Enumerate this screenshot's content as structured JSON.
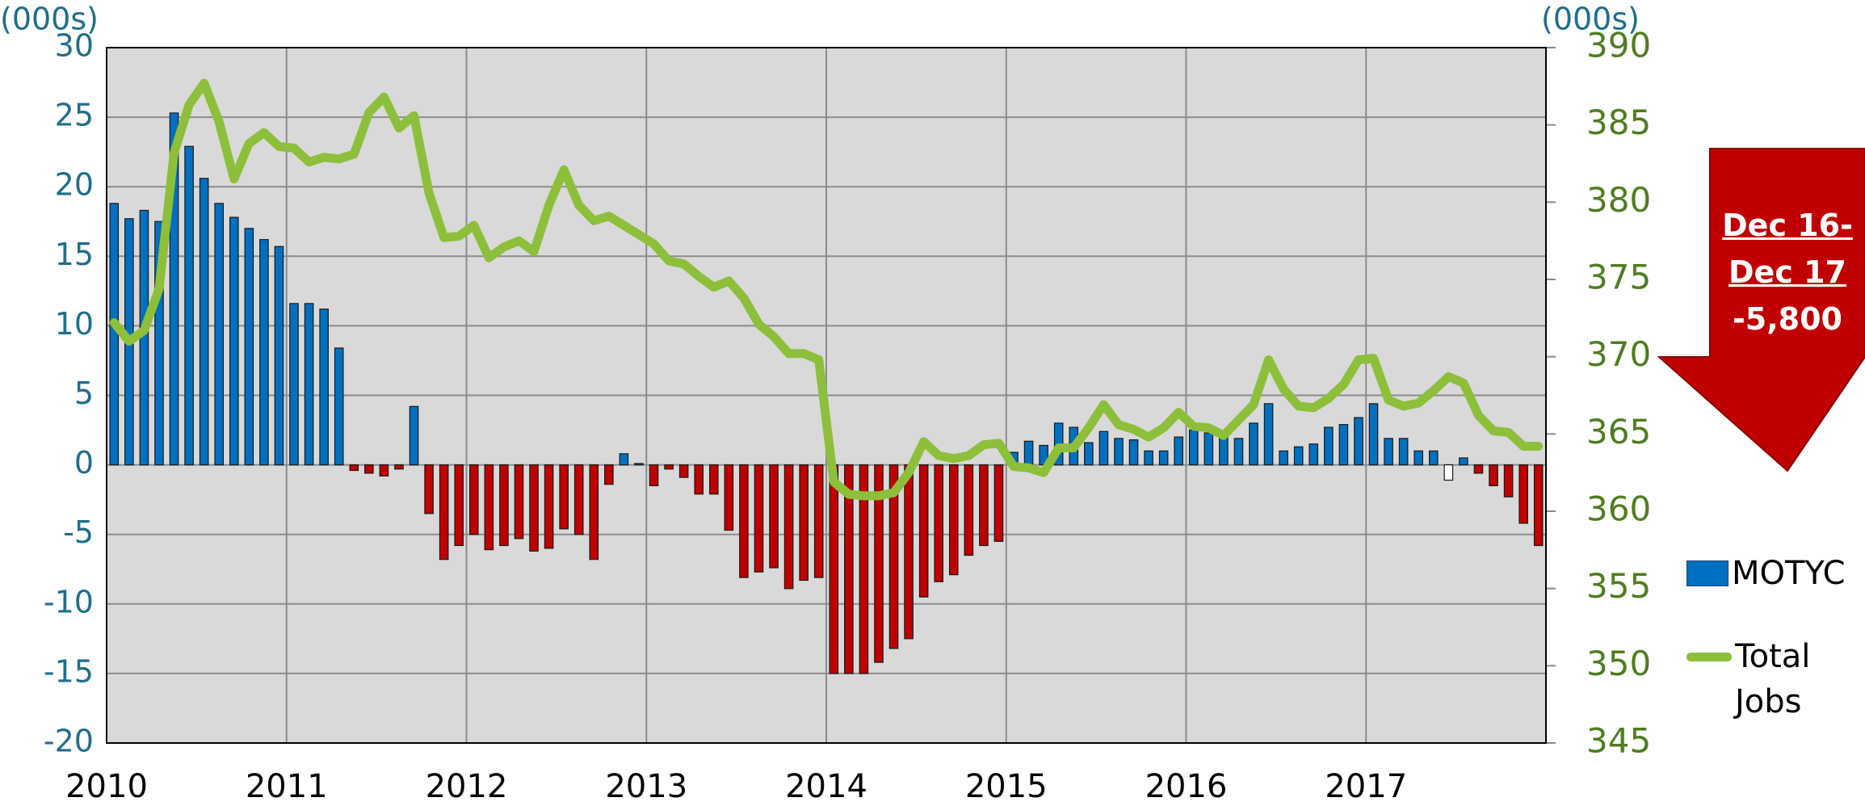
{
  "chart_data": {
    "type": "bar_line",
    "y_unit_label": "(000s)",
    "y2_unit_label": "(000s)",
    "categories": [
      "2010",
      null,
      null,
      null,
      null,
      null,
      null,
      null,
      null,
      null,
      null,
      null,
      "2011",
      null,
      null,
      null,
      null,
      null,
      null,
      null,
      null,
      null,
      null,
      null,
      "2012",
      null,
      null,
      null,
      null,
      null,
      null,
      null,
      null,
      null,
      null,
      null,
      "2013",
      null,
      null,
      null,
      null,
      null,
      null,
      null,
      null,
      null,
      null,
      null,
      "2014",
      null,
      null,
      null,
      null,
      null,
      null,
      null,
      null,
      null,
      null,
      null,
      "2015",
      null,
      null,
      null,
      null,
      null,
      null,
      null,
      null,
      null,
      null,
      null,
      "2016",
      null,
      null,
      null,
      null,
      null,
      null,
      null,
      null,
      null,
      null,
      null,
      "2017",
      null,
      null,
      null,
      null,
      null,
      null,
      null,
      null,
      null,
      null,
      null
    ],
    "series": [
      {
        "name": "MOTYC",
        "type": "bar",
        "axis": "y",
        "color": "#0070c0",
        "values": [
          18.8,
          17.7,
          18.3,
          17.5,
          25.3,
          22.9,
          20.6,
          18.8,
          17.8,
          17.0,
          16.2,
          15.7,
          11.6,
          11.6,
          11.2,
          8.4,
          -0.4,
          -0.6,
          -0.8,
          -0.3,
          4.2,
          -3.5,
          -6.8,
          -5.8,
          -5.0,
          -6.1,
          -5.8,
          -5.3,
          -6.2,
          -6.0,
          -4.6,
          -5.0,
          -6.8,
          -1.4,
          0.8,
          0.1,
          -1.5,
          -0.3,
          -0.9,
          -2.1,
          -2.1,
          -4.7,
          -8.1,
          -7.7,
          -7.4,
          -8.9,
          -8.3,
          -8.1,
          -15.0,
          -15.0,
          -15.0,
          -14.2,
          -13.2,
          -12.5,
          -9.5,
          -8.4,
          -7.9,
          -6.5,
          -5.8,
          -5.5,
          0.9,
          1.7,
          1.4,
          3.0,
          2.7,
          1.6,
          2.4,
          1.9,
          1.8,
          1.0,
          1.0,
          2.0,
          2.5,
          2.3,
          2.0,
          1.9,
          3.0,
          4.4,
          1.0,
          1.3,
          1.5,
          2.7,
          2.9,
          3.4,
          4.4,
          1.9,
          1.9,
          1.0,
          1.0,
          -1.1,
          0.5,
          -0.6,
          -1.5,
          -2.3,
          -4.2,
          -5.8
        ],
        "colors": [
          "#0070c0",
          "#0070c0",
          "#0070c0",
          "#0070c0",
          "#0070c0",
          "#0070c0",
          "#0070c0",
          "#0070c0",
          "#0070c0",
          "#0070c0",
          "#0070c0",
          "#0070c0",
          "#0070c0",
          "#0070c0",
          "#0070c0",
          "#0070c0",
          "#c00000",
          "#c00000",
          "#c00000",
          "#c00000",
          "#0070c0",
          "#c00000",
          "#c00000",
          "#c00000",
          "#c00000",
          "#c00000",
          "#c00000",
          "#c00000",
          "#c00000",
          "#c00000",
          "#c00000",
          "#c00000",
          "#c00000",
          "#c00000",
          "#0070c0",
          "#0070c0",
          "#c00000",
          "#c00000",
          "#c00000",
          "#c00000",
          "#c00000",
          "#c00000",
          "#c00000",
          "#c00000",
          "#c00000",
          "#c00000",
          "#c00000",
          "#c00000",
          "#c00000",
          "#c00000",
          "#c00000",
          "#c00000",
          "#c00000",
          "#c00000",
          "#c00000",
          "#c00000",
          "#c00000",
          "#c00000",
          "#c00000",
          "#c00000",
          "#0070c0",
          "#0070c0",
          "#0070c0",
          "#0070c0",
          "#0070c0",
          "#0070c0",
          "#0070c0",
          "#0070c0",
          "#0070c0",
          "#0070c0",
          "#0070c0",
          "#0070c0",
          "#0070c0",
          "#0070c0",
          "#0070c0",
          "#0070c0",
          "#0070c0",
          "#0070c0",
          "#0070c0",
          "#0070c0",
          "#0070c0",
          "#0070c0",
          "#0070c0",
          "#0070c0",
          "#0070c0",
          "#0070c0",
          "#0070c0",
          "#0070c0",
          "#0070c0",
          "#ffffff",
          "#0070c0",
          "#c00000",
          "#c00000",
          "#c00000",
          "#c00000",
          "#c00000"
        ]
      },
      {
        "name": "Total Jobs",
        "type": "line",
        "axis": "y2",
        "color": "#8dbf3a",
        "values": [
          372.2,
          371.0,
          371.7,
          374.4,
          383.2,
          386.3,
          387.7,
          385.2,
          381.5,
          383.8,
          384.5,
          383.6,
          383.5,
          382.6,
          382.9,
          382.8,
          383.1,
          385.8,
          386.8,
          384.8,
          385.6,
          380.6,
          377.7,
          377.8,
          378.5,
          376.4,
          377.1,
          377.5,
          376.8,
          379.8,
          382.1,
          379.8,
          378.8,
          379.1,
          378.5,
          377.9,
          377.3,
          376.2,
          376.0,
          375.2,
          374.5,
          374.9,
          373.8,
          372.1,
          371.3,
          370.2,
          370.2,
          369.8,
          361.9,
          361.1,
          361.0,
          361.0,
          361.2,
          362.5,
          364.5,
          363.6,
          363.4,
          363.6,
          364.3,
          364.4,
          362.9,
          362.8,
          362.5,
          364.1,
          364.1,
          365.4,
          366.9,
          365.6,
          365.3,
          364.8,
          365.4,
          366.4,
          365.5,
          365.4,
          364.9,
          365.9,
          366.9,
          369.8,
          367.9,
          366.8,
          366.7,
          367.3,
          368.2,
          369.8,
          369.9,
          367.2,
          366.8,
          367.0,
          367.8,
          368.7,
          368.3,
          366.2,
          365.2,
          365.1,
          364.2,
          364.2
        ]
      }
    ],
    "ylim": [
      -20,
      30
    ],
    "yticks": [
      -20,
      -15,
      -10,
      -5,
      0,
      5,
      10,
      15,
      20,
      25,
      30
    ],
    "y2lim": [
      345,
      390
    ],
    "y2ticks": [
      345,
      350,
      355,
      360,
      365,
      370,
      375,
      380,
      385,
      390
    ],
    "grid": true,
    "annotation": {
      "lines": [
        "Dec 16-",
        "Dec 17",
        "-5,800"
      ],
      "color": "#c00000"
    }
  }
}
